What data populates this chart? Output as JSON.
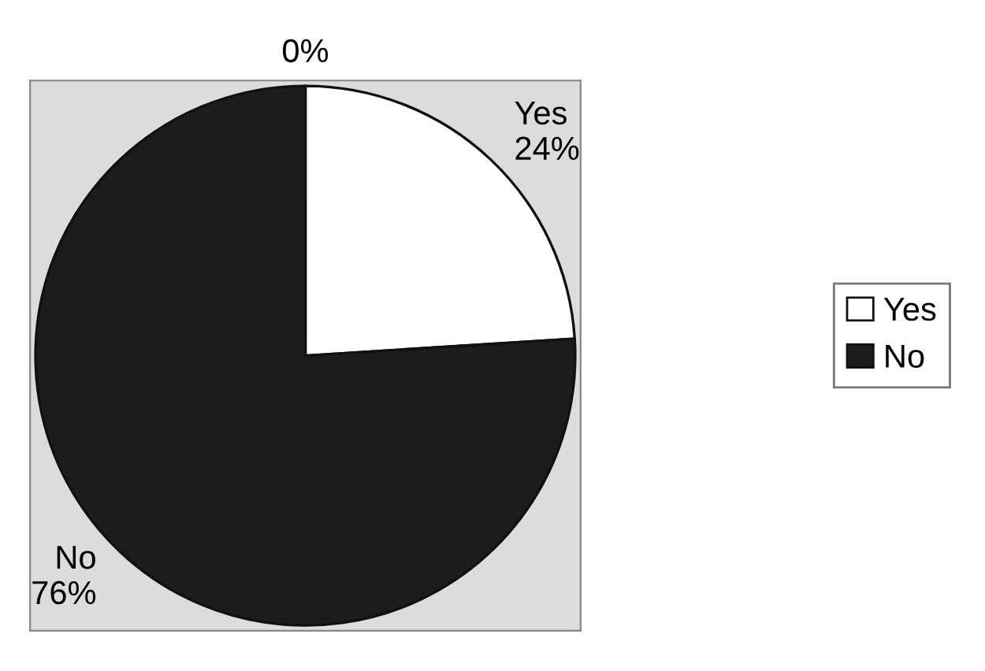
{
  "chart_data": {
    "type": "pie",
    "categories": [
      "Yes",
      "No",
      null
    ],
    "values": [
      24,
      76,
      0
    ],
    "colors": [
      "#ffffff",
      "#1c1c1c",
      "#1c1c1c"
    ],
    "value_labels": [
      "24%",
      "76%",
      "0%"
    ],
    "legend": "right"
  }
}
